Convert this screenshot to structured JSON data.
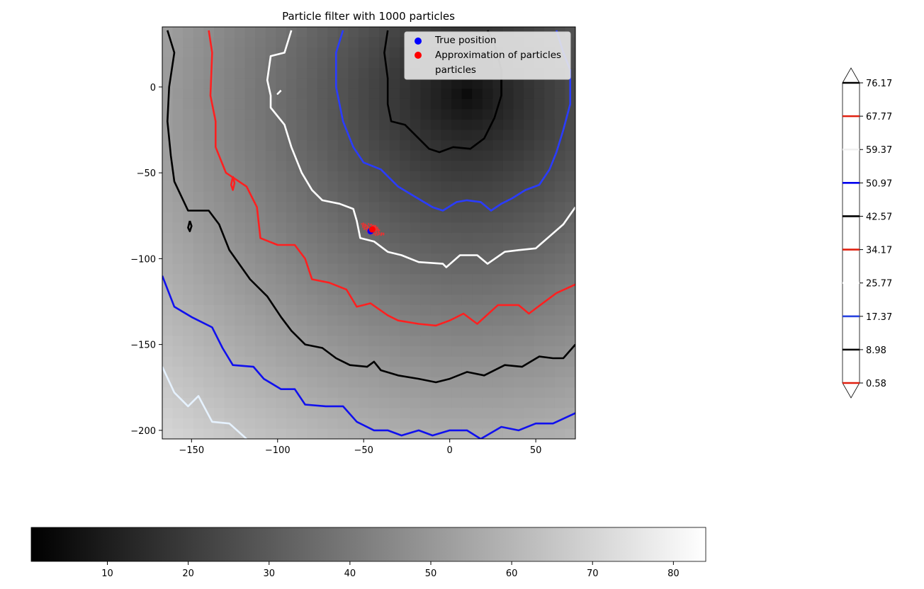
{
  "chart_data": {
    "type": "heatmap",
    "title": "Particle filter with 1000 particles",
    "xlim": [
      -167,
      73
    ],
    "ylim": [
      -205,
      35
    ],
    "x_ticks": [
      -150,
      -100,
      -50,
      0,
      50
    ],
    "y_ticks": [
      0,
      -50,
      -100,
      -150,
      -200
    ],
    "x_tick_labels": [
      "−150",
      "−100",
      "−50",
      "0",
      "50"
    ],
    "y_tick_labels": [
      "0",
      "−50",
      "−100",
      "−150",
      "−200"
    ],
    "colormap": "gray",
    "field_center": [
      10,
      -5
    ],
    "field_min": 0.58,
    "field_max": 84,
    "legend": {
      "placement": "upper right",
      "entries": [
        {
          "label": "True position",
          "color": "#0000ff",
          "marker": "circle"
        },
        {
          "label": "Approximation of particles",
          "color": "#ff0000",
          "marker": "circle"
        },
        {
          "label": "particles",
          "color": "#e6e6ff",
          "marker": "none"
        }
      ]
    },
    "true_position": [
      -46,
      -84
    ],
    "particle_estimate": [
      -45,
      -83
    ],
    "particle_cloud": {
      "center": [
        -45,
        -83
      ],
      "spread": [
        5,
        3
      ]
    },
    "contours": [
      {
        "level": 42.57,
        "color": "#000000",
        "points": [
          [
            -164,
            33
          ],
          [
            -160,
            20
          ],
          [
            -163,
            0
          ],
          [
            -164,
            -20
          ],
          [
            -162,
            -40
          ],
          [
            -160,
            -55
          ],
          [
            -152,
            -72
          ],
          [
            -140,
            -72
          ],
          [
            -134,
            -80
          ],
          [
            -128,
            -95
          ],
          [
            -116,
            -112
          ],
          [
            -106,
            -122
          ],
          [
            -98,
            -134
          ],
          [
            -92,
            -142
          ],
          [
            -84,
            -150
          ],
          [
            -74,
            -152
          ],
          [
            -66,
            -158
          ],
          [
            -58,
            -162
          ],
          [
            -48,
            -163
          ],
          [
            -44,
            -160
          ],
          [
            -40,
            -165
          ],
          [
            -30,
            -168
          ],
          [
            -18,
            -170
          ],
          [
            -8,
            -172
          ],
          [
            0,
            -170
          ],
          [
            10,
            -166
          ],
          [
            20,
            -168
          ],
          [
            32,
            -162
          ],
          [
            42,
            -163
          ],
          [
            52,
            -157
          ],
          [
            60,
            -158
          ],
          [
            66,
            -158
          ],
          [
            73,
            -150
          ]
        ]
      },
      {
        "level": 34.17,
        "color": "#ff2020",
        "points": [
          [
            -140,
            33
          ],
          [
            -138,
            20
          ],
          [
            -139,
            -5
          ],
          [
            -136,
            -20
          ],
          [
            -136,
            -35
          ],
          [
            -130,
            -50
          ],
          [
            -118,
            -58
          ],
          [
            -112,
            -70
          ],
          [
            -110,
            -88
          ],
          [
            -100,
            -92
          ],
          [
            -90,
            -92
          ],
          [
            -84,
            -100
          ],
          [
            -80,
            -112
          ],
          [
            -70,
            -114
          ],
          [
            -60,
            -118
          ],
          [
            -54,
            -128
          ],
          [
            -46,
            -126
          ],
          [
            -36,
            -133
          ],
          [
            -30,
            -136
          ],
          [
            -18,
            -138
          ],
          [
            -8,
            -139
          ],
          [
            0,
            -136
          ],
          [
            8,
            -132
          ],
          [
            16,
            -138
          ],
          [
            28,
            -127
          ],
          [
            40,
            -127
          ],
          [
            46,
            -132
          ],
          [
            54,
            -126
          ],
          [
            62,
            -120
          ],
          [
            73,
            -115
          ]
        ]
      },
      {
        "level": 59.37,
        "color": "#ffffff",
        "points": [
          [
            -92,
            33
          ],
          [
            -96,
            20
          ],
          [
            -104,
            18
          ],
          [
            -106,
            4
          ],
          [
            -104,
            -5
          ],
          [
            -104,
            -12
          ],
          [
            -96,
            -22
          ],
          [
            -92,
            -35
          ],
          [
            -86,
            -50
          ],
          [
            -80,
            -60
          ],
          [
            -74,
            -66
          ],
          [
            -64,
            -68
          ],
          [
            -56,
            -71
          ],
          [
            -54,
            -78
          ],
          [
            -52,
            -88
          ],
          [
            -44,
            -90
          ],
          [
            -36,
            -96
          ],
          [
            -28,
            -98
          ],
          [
            -18,
            -102
          ],
          [
            -4,
            -103
          ],
          [
            -2,
            -105
          ],
          [
            6,
            -98
          ],
          [
            16,
            -98
          ],
          [
            22,
            -103
          ],
          [
            32,
            -96
          ],
          [
            40,
            -95
          ],
          [
            50,
            -94
          ],
          [
            58,
            -87
          ],
          [
            66,
            -80
          ],
          [
            73,
            -70
          ]
        ]
      },
      {
        "level": 17.37,
        "color": "#2a3cff",
        "points": [
          [
            -62,
            33
          ],
          [
            -66,
            20
          ],
          [
            -66,
            0
          ],
          [
            -62,
            -20
          ],
          [
            -56,
            -35
          ],
          [
            -50,
            -44
          ],
          [
            -40,
            -48
          ],
          [
            -30,
            -58
          ],
          [
            -20,
            -64
          ],
          [
            -10,
            -70
          ],
          [
            -4,
            -72
          ],
          [
            4,
            -67
          ],
          [
            10,
            -66
          ],
          [
            18,
            -67
          ],
          [
            24,
            -72
          ],
          [
            30,
            -68
          ],
          [
            36,
            -65
          ],
          [
            44,
            -60
          ],
          [
            52,
            -57
          ],
          [
            58,
            -48
          ],
          [
            62,
            -38
          ],
          [
            66,
            -25
          ],
          [
            70,
            -10
          ],
          [
            70,
            10
          ],
          [
            66,
            20
          ],
          [
            62,
            33
          ]
        ]
      },
      {
        "level": 8.98,
        "color": "#000000",
        "points": [
          [
            -36,
            33
          ],
          [
            -38,
            20
          ],
          [
            -36,
            5
          ],
          [
            -36,
            -10
          ],
          [
            -34,
            -20
          ],
          [
            -26,
            -22
          ],
          [
            -18,
            -30
          ],
          [
            -12,
            -36
          ],
          [
            -6,
            -38
          ],
          [
            2,
            -35
          ],
          [
            12,
            -36
          ],
          [
            20,
            -30
          ],
          [
            26,
            -18
          ],
          [
            30,
            -5
          ],
          [
            30,
            10
          ],
          [
            26,
            25
          ],
          [
            22,
            33
          ]
        ]
      },
      {
        "level": 0.58,
        "color": "#1010ee",
        "points": [
          [
            -167,
            -110
          ],
          [
            -160,
            -128
          ],
          [
            -150,
            -134
          ],
          [
            -138,
            -140
          ],
          [
            -132,
            -152
          ],
          [
            -126,
            -162
          ],
          [
            -114,
            -163
          ],
          [
            -108,
            -170
          ],
          [
            -98,
            -176
          ],
          [
            -90,
            -176
          ],
          [
            -84,
            -185
          ],
          [
            -72,
            -186
          ],
          [
            -62,
            -186
          ],
          [
            -54,
            -195
          ],
          [
            -44,
            -200
          ],
          [
            -36,
            -200
          ],
          [
            -28,
            -203
          ],
          [
            -18,
            -200
          ],
          [
            -10,
            -203
          ],
          [
            0,
            -200
          ],
          [
            10,
            -200
          ],
          [
            18,
            -205
          ],
          [
            30,
            -198
          ],
          [
            40,
            -200
          ],
          [
            50,
            -196
          ],
          [
            60,
            -196
          ],
          [
            73,
            -190
          ]
        ]
      },
      {
        "level": 67.77,
        "color": "#e6f2ff",
        "points": [
          [
            -167,
            -163
          ],
          [
            -160,
            -178
          ],
          [
            -152,
            -186
          ],
          [
            -146,
            -180
          ],
          [
            -138,
            -195
          ],
          [
            -128,
            -196
          ],
          [
            -118,
            -205
          ]
        ]
      }
    ],
    "small_contours": [
      {
        "color": "#ff2020",
        "points": [
          [
            -126,
            -52
          ],
          [
            -127,
            -57
          ],
          [
            -126,
            -60
          ],
          [
            -125,
            -56
          ],
          [
            -126,
            -52
          ]
        ]
      },
      {
        "color": "#000000",
        "points": [
          [
            -151,
            -78
          ],
          [
            -152,
            -82
          ],
          [
            -151,
            -84
          ],
          [
            -150,
            -81
          ],
          [
            -151,
            -78
          ]
        ]
      },
      {
        "color": "#ffffff",
        "points": [
          [
            -98,
            -2
          ],
          [
            -100,
            -4
          ],
          [
            -98,
            -2
          ]
        ]
      }
    ],
    "contour_colorbar": {
      "orientation": "vertical",
      "extend": "both",
      "levels": [
        0.58,
        8.98,
        17.37,
        25.77,
        34.17,
        42.57,
        50.97,
        59.37,
        67.77,
        76.17
      ],
      "tick_labels": [
        "0.58",
        "8.98",
        "17.37",
        "25.77",
        "34.17",
        "42.57",
        "50.97",
        "59.37",
        "67.77",
        "76.17"
      ],
      "colors": [
        "#e02010",
        "#000000",
        "#2a44e0",
        "#ffffff",
        "#e02010",
        "#000000",
        "#0000ee",
        "#f0f0f0",
        "#e02010",
        "#000000"
      ]
    },
    "image_colorbar": {
      "orientation": "horizontal",
      "colormap": "gray",
      "range": [
        0.58,
        84
      ],
      "ticks": [
        10,
        20,
        30,
        40,
        50,
        60,
        70,
        80
      ],
      "tick_labels": [
        "10",
        "20",
        "30",
        "40",
        "50",
        "60",
        "70",
        "80"
      ]
    }
  }
}
